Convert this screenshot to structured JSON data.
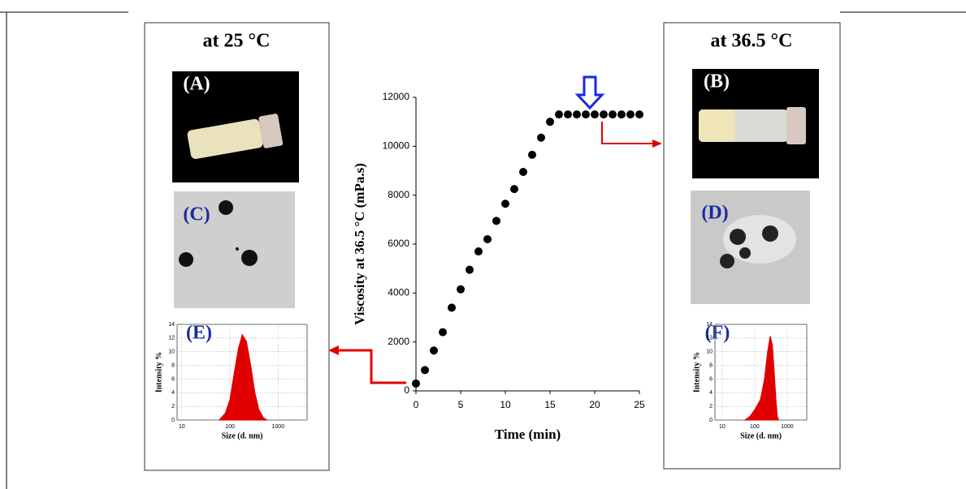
{
  "panels": {
    "left_title": "at 25 °C",
    "right_title": "at 36.5 °C",
    "labels": [
      "(A)",
      "(B)",
      "(C)",
      "(D)",
      "(E)",
      "(F)"
    ]
  },
  "chart_data": [
    {
      "type": "scatter",
      "xlabel": "Time (min)",
      "ylabel": "Viscosity at 36.5 °C (mPa.s)",
      "x": [
        0,
        1,
        2,
        3,
        4,
        5,
        6,
        7,
        8,
        9,
        10,
        11,
        12,
        13,
        14,
        15,
        16,
        17,
        18,
        19,
        20,
        21,
        22,
        23,
        24,
        25
      ],
      "values": [
        300,
        850,
        1650,
        2400,
        3400,
        4150,
        4950,
        5700,
        6200,
        6950,
        7650,
        8250,
        8950,
        9650,
        10350,
        11000,
        11300,
        11300,
        11300,
        11300,
        11300,
        11300,
        11300,
        11300,
        11300,
        11300
      ],
      "color": "#000000",
      "xlim": [
        0,
        25
      ],
      "xticks": [
        0,
        5,
        10,
        15,
        20,
        25
      ],
      "ylim": [
        0,
        12000
      ],
      "yticks": [
        0,
        2000,
        4000,
        6000,
        8000,
        10000,
        12000
      ],
      "grid": false,
      "log_x": false
    },
    {
      "type": "area",
      "xlabel": "Size (d. nm)",
      "ylabel": "Intensity %",
      "x": [
        60,
        80,
        100,
        120,
        150,
        180,
        220,
        270,
        330,
        400,
        500,
        600
      ],
      "values": [
        0,
        1,
        3,
        6.5,
        10.5,
        12.5,
        11.5,
        8,
        4,
        1.5,
        0.3,
        0
      ],
      "color": "#e00000",
      "xlim": [
        8,
        4000
      ],
      "xticks": [
        10,
        100,
        1000
      ],
      "ylim": [
        0,
        14
      ],
      "yticks": [
        0,
        2,
        4,
        6,
        8,
        10,
        12,
        14
      ],
      "grid": true,
      "log_x": true
    },
    {
      "type": "area",
      "xlabel": "Size (d. nm)",
      "ylabel": "Intensity %",
      "x": [
        50,
        70,
        100,
        150,
        200,
        250,
        300,
        350,
        400,
        450,
        500,
        550
      ],
      "values": [
        0,
        0.5,
        1.5,
        3,
        6,
        10,
        12.3,
        11,
        7,
        3,
        0.5,
        0
      ],
      "color": "#e00000",
      "xlim": [
        6,
        4000
      ],
      "xticks": [
        10,
        100,
        1000
      ],
      "ylim": [
        0,
        14
      ],
      "yticks": [
        0,
        2,
        4,
        6,
        8,
        10,
        12,
        14
      ],
      "grid": true,
      "log_x": true
    }
  ]
}
